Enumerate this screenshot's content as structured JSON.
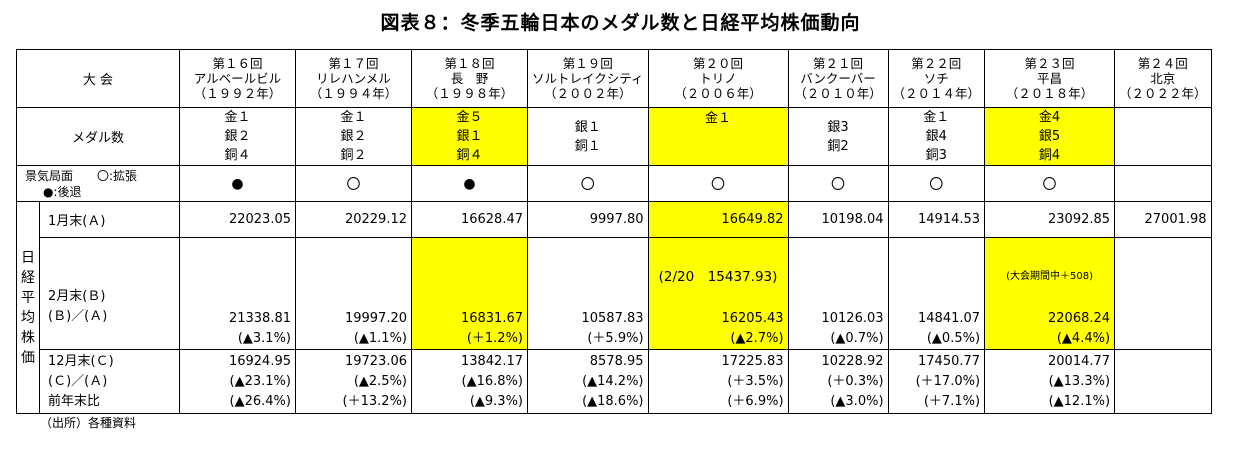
{
  "title": "図表８：冬季五輪日本のメダル数と日経平均株価動向",
  "source": "（出所）各種資料",
  "row_labels": {
    "taikai": "大 会",
    "medals": "メダル数",
    "keiki": "景気局面　　〇:拡張",
    "keiki_sub": "●:後退",
    "nikkei_vertical": "日経平均株価",
    "jan": "1月末(Ａ)",
    "feb1": "2月末(Ｂ)",
    "feb2": "(Ｂ)／(Ａ)",
    "dec1": "12月末(Ｃ)",
    "dec2": "(Ｃ)／(Ａ)",
    "dec3": "前年末比"
  },
  "games": [
    {
      "no": "第１６回",
      "city": "アルベールビル",
      "year": "（１９９２年）",
      "medals": [
        "金１",
        "銀２",
        "銅４"
      ],
      "medal_hl": false,
      "keiki": "●",
      "jan": "22023.05",
      "jan_hl": false,
      "feb_note": "",
      "feb": "21338.81",
      "feb_ratio": "(▲3.1%)",
      "feb_hl": false,
      "dec": "16924.95",
      "dec_ratio": "(▲23.1%)",
      "dec_prev": "(▲26.4%)"
    },
    {
      "no": "第１７回",
      "city": "リレハンメル",
      "year": "（１９９４年）",
      "medals": [
        "金１",
        "銀２",
        "銅２"
      ],
      "medal_hl": false,
      "keiki": "〇",
      "jan": "20229.12",
      "jan_hl": false,
      "feb_note": "",
      "feb": "19997.20",
      "feb_ratio": "(▲1.1%)",
      "feb_hl": false,
      "dec": "19723.06",
      "dec_ratio": "(▲2.5%)",
      "dec_prev": "(＋13.2%)"
    },
    {
      "no": "第１８回",
      "city": "長　野",
      "year": "（１９９８年）",
      "medals": [
        "金５",
        "銀１",
        "銅４"
      ],
      "medal_hl": true,
      "keiki": "●",
      "jan": "16628.47",
      "jan_hl": false,
      "feb_note": "",
      "feb": "16831.67",
      "feb_ratio": "(＋1.2%)",
      "feb_hl": true,
      "dec": "13842.17",
      "dec_ratio": "(▲16.8%)",
      "dec_prev": "(▲9.3%)"
    },
    {
      "no": "第１９回",
      "city": "ソルトレイクシティ",
      "year": "（２００２年）",
      "medals": [
        "",
        "銀１",
        "銅１"
      ],
      "medal_hl": false,
      "keiki": "〇",
      "jan": "9997.80",
      "jan_hl": false,
      "feb_note": "",
      "feb": "10587.83",
      "feb_ratio": "(＋5.9%)",
      "feb_hl": false,
      "dec": "8578.95",
      "dec_ratio": "(▲14.2%)",
      "dec_prev": "(▲18.6%)"
    },
    {
      "no": "第２０回",
      "city": "トリノ",
      "year": "（２００６年）",
      "medals": [
        "金１",
        "",
        ""
      ],
      "medal_hl": true,
      "keiki": "〇",
      "jan": "16649.82",
      "jan_hl": true,
      "feb_note": "(2/20　15437.93)",
      "feb": "16205.43",
      "feb_ratio": "(▲2.7%)",
      "feb_hl": true,
      "dec": "17225.83",
      "dec_ratio": "(＋3.5%)",
      "dec_prev": "(＋6.9%)"
    },
    {
      "no": "第２１回",
      "city": "バンクーバー",
      "year": "（２０１０年）",
      "medals": [
        "",
        "銀3",
        "銅2"
      ],
      "medal_hl": false,
      "keiki": "〇",
      "jan": "10198.04",
      "jan_hl": false,
      "feb_note": "",
      "feb": "10126.03",
      "feb_ratio": "(▲0.7%)",
      "feb_hl": false,
      "dec": "10228.92",
      "dec_ratio": "(＋0.3%)",
      "dec_prev": "(▲3.0%)"
    },
    {
      "no": "第２２回",
      "city": "ソチ",
      "year": "（２０１４年）",
      "medals": [
        "金１",
        "銀4",
        "銅3"
      ],
      "medal_hl": false,
      "keiki": "〇",
      "jan": "14914.53",
      "jan_hl": false,
      "feb_note": "",
      "feb": "14841.07",
      "feb_ratio": "(▲0.5%)",
      "feb_hl": false,
      "dec": "17450.77",
      "dec_ratio": "(＋17.0%)",
      "dec_prev": "(＋7.1%)"
    },
    {
      "no": "第２３回",
      "city": "平昌",
      "year": "（２０１８年）",
      "medals": [
        "金4",
        "銀5",
        "銅4"
      ],
      "medal_hl": true,
      "keiki": "〇",
      "jan": "23092.85",
      "jan_hl": false,
      "feb_note": "(大会期間中＋508)",
      "feb": "22068.24",
      "feb_ratio": "(▲4.4%)",
      "feb_hl": true,
      "dec": "20014.77",
      "dec_ratio": "(▲13.3%)",
      "dec_prev": "(▲12.1%)"
    },
    {
      "no": "第２４回",
      "city": "北京",
      "year": "（２０２２年）",
      "medals": [
        "",
        "",
        ""
      ],
      "medal_hl": false,
      "keiki": "",
      "jan": "27001.98",
      "jan_hl": false,
      "feb_note": "",
      "feb": "",
      "feb_ratio": "",
      "feb_hl": false,
      "dec": "",
      "dec_ratio": "",
      "dec_prev": ""
    }
  ],
  "colors": {
    "highlight": "#ffff00",
    "border": "#000000"
  }
}
